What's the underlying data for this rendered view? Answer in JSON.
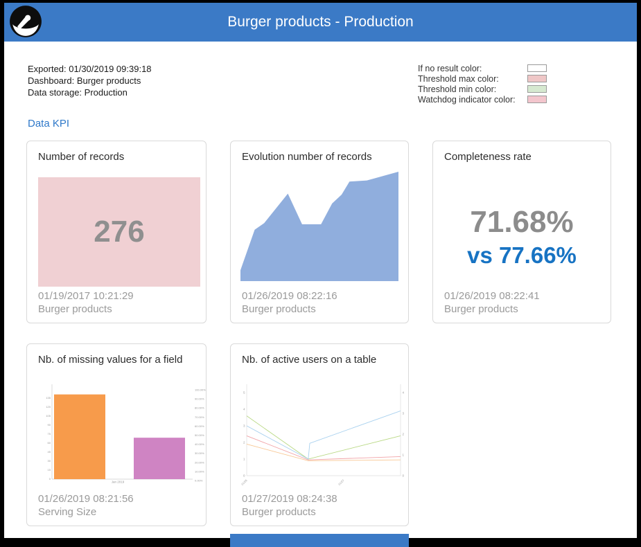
{
  "header": {
    "title": "Burger products - Production",
    "bg_color": "#3b7ac6",
    "logo_icon": "gauge-icon"
  },
  "export_info": {
    "exported": "Exported: 01/30/2019 09:39:18",
    "dashboard": "Dashboard: Burger products",
    "data_storage": "Data storage: Production"
  },
  "legend": {
    "items": [
      {
        "label": "If no result color:",
        "color": "#ffffff"
      },
      {
        "label": "Threshold max color:",
        "color": "#efc7c7"
      },
      {
        "label": "Threshold min color:",
        "color": "#d6e9d0"
      },
      {
        "label": "Watchdog indicator color:",
        "color": "#f3c6cd"
      }
    ]
  },
  "section": {
    "title": "Data KPI"
  },
  "cards": [
    {
      "title": "Number of records",
      "value": "276",
      "box_color": "#f0d0d3",
      "timestamp": "01/19/2017 10:21:29",
      "subtitle": "Burger products"
    },
    {
      "title": "Evolution number of records",
      "timestamp": "01/26/2019 08:22:16",
      "subtitle": "Burger products"
    },
    {
      "title": "Completeness rate",
      "value": "71.68%",
      "comparison": "vs 77.66%",
      "timestamp": "01/26/2019 08:22:41",
      "subtitle": "Burger products"
    },
    {
      "title": "Nb. of missing values for a field",
      "timestamp": "01/26/2019 08:21:56",
      "subtitle": "Serving Size"
    },
    {
      "title": "Nb. of active users on a table",
      "timestamp": "01/27/2019 08:24:38",
      "subtitle": "Burger products"
    }
  ],
  "footer_bar": {
    "color": "#3b7ac6"
  },
  "chart_data": [
    {
      "type": "area",
      "title": "Evolution number of records",
      "color": "#90aedd",
      "axes_visible": false,
      "points_pct_from_top": [
        [
          0,
          90
        ],
        [
          9,
          53
        ],
        [
          15,
          47
        ],
        [
          30,
          20
        ],
        [
          39,
          48
        ],
        [
          51,
          48
        ],
        [
          58,
          29
        ],
        [
          64,
          21
        ],
        [
          69,
          9
        ],
        [
          80,
          8
        ],
        [
          85,
          6
        ],
        [
          100,
          0
        ]
      ]
    },
    {
      "type": "bar",
      "title": "Nb. of missing values for a field",
      "values_pct": [
        92,
        45
      ],
      "colors": [
        "#f79b4b",
        "#cf84c3"
      ],
      "left_ticks": [
        "135",
        "120",
        "105",
        "90",
        "75",
        "60",
        "45",
        "30",
        "15",
        "0"
      ],
      "right_ticks": [
        "100.00%",
        "90.00%",
        "80.00%",
        "70.00%",
        "60.00%",
        "50.00%",
        "40.00%",
        "30.00%",
        "20.00%",
        "10.00%",
        "0.00%"
      ],
      "xlabel": "Jan 2019"
    },
    {
      "type": "line",
      "title": "Nb. of active users on a table",
      "left_axis_ticks": [
        5,
        4,
        3,
        2,
        1,
        0
      ],
      "right_axis_ticks": [
        4,
        3,
        2,
        1,
        0
      ],
      "x_labels": [
        "01/26",
        "01/27"
      ],
      "series": [
        {
          "name": "series-green",
          "color": "#b8d883",
          "points": [
            [
              0,
              3.6
            ],
            [
              0.4,
              1.0
            ],
            [
              1,
              2.4
            ]
          ]
        },
        {
          "name": "series-blue",
          "color": "#a9d1ef",
          "points": [
            [
              0,
              3.0
            ],
            [
              0.4,
              1.0
            ],
            [
              0.41,
              1.95
            ],
            [
              1,
              3.9
            ]
          ]
        },
        {
          "name": "series-pink",
          "color": "#f1a2a6",
          "points": [
            [
              0,
              2.4
            ],
            [
              0.4,
              0.95
            ],
            [
              1,
              1.15
            ]
          ]
        },
        {
          "name": "series-orange",
          "color": "#f8c793",
          "points": [
            [
              0,
              1.9
            ],
            [
              0.4,
              0.9
            ],
            [
              1,
              0.95
            ]
          ]
        }
      ]
    }
  ]
}
